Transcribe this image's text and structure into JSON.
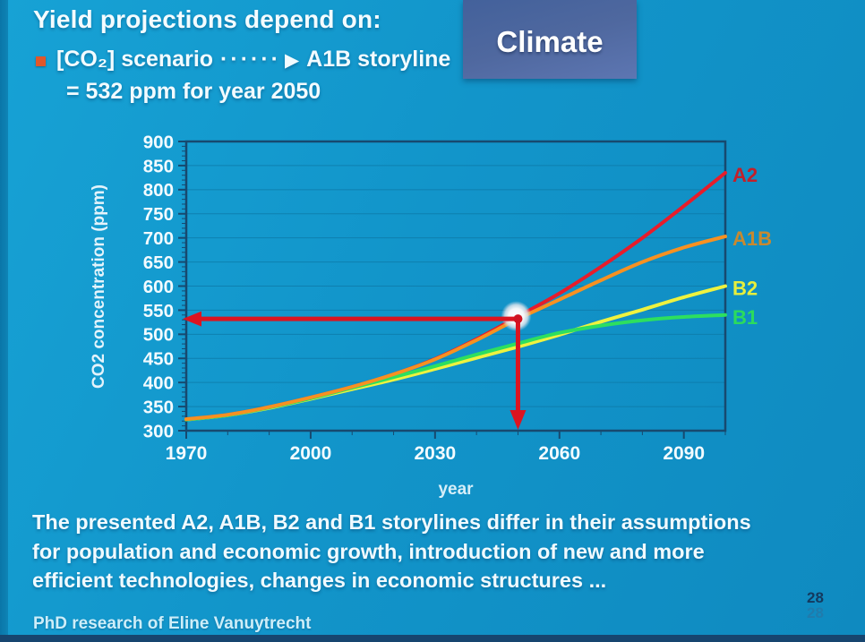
{
  "slide": {
    "title": "Yield projections depend on:",
    "bullet": {
      "co2": "[CO₂] scenario",
      "dots": "······",
      "arrow": "▶",
      "target": "A1B storyline"
    },
    "bullet_line2": "= 532 ppm for year 2050",
    "climate_label": "Climate",
    "paragraph_lines": [
      "The presented A2, A1B, B2 and B1 storylines differ in their assumptions",
      "for population and economic growth, introduction of new and more",
      "efficient technologies, changes in economic structures ..."
    ],
    "footer": "PhD research of Eline Vanuytrecht",
    "page_number": "28"
  },
  "colors": {
    "background": "#1295ca",
    "axis": "#17496f",
    "grid": "#0d78a6",
    "tick_text": "#f3fbff",
    "arrow_red": "#dc1420",
    "climate_box": "#4a67a1"
  },
  "chart_data": {
    "type": "line",
    "title": "",
    "xlabel": "year",
    "ylabel": "CO2 concentration (ppm)",
    "xlim": [
      1970,
      2100
    ],
    "ylim": [
      300,
      900
    ],
    "x_ticks": [
      1970,
      2000,
      2030,
      2060,
      2090
    ],
    "x_minor_step": 10,
    "y_tick_step": 50,
    "y_minor_step": 10,
    "grid": true,
    "legend_position": "right-of-lines",
    "x": [
      1970,
      1980,
      1990,
      2000,
      2010,
      2020,
      2030,
      2040,
      2050,
      2060,
      2070,
      2080,
      2090,
      2100
    ],
    "series": [
      {
        "name": "A2",
        "color": "#e81c2a",
        "label_color": "#c2202a",
        "values": [
          324,
          333,
          349,
          369,
          391,
          417,
          449,
          490,
          537,
          585,
          640,
          700,
          766,
          835
        ]
      },
      {
        "name": "A1B",
        "color": "#f79121",
        "label_color": "#c8892f",
        "values": [
          324,
          333,
          349,
          369,
          391,
          417,
          448,
          488,
          532,
          572,
          612,
          650,
          680,
          703
        ]
      },
      {
        "name": "B2",
        "color": "#eef23f",
        "label_color": "#e6ee3c",
        "values": [
          323,
          332,
          347,
          366,
          386,
          406,
          428,
          451,
          474,
          499,
          526,
          551,
          577,
          600
        ]
      },
      {
        "name": "B1",
        "color": "#2ddf5f",
        "label_color": "#2bdb5d",
        "values": [
          323,
          332,
          348,
          367,
          389,
          411,
          434,
          458,
          481,
          503,
          518,
          529,
          536,
          540
        ]
      }
    ],
    "annotation": {
      "year": 2050,
      "value": 532,
      "series": "A1B",
      "marker": "white-glow-dot"
    }
  }
}
